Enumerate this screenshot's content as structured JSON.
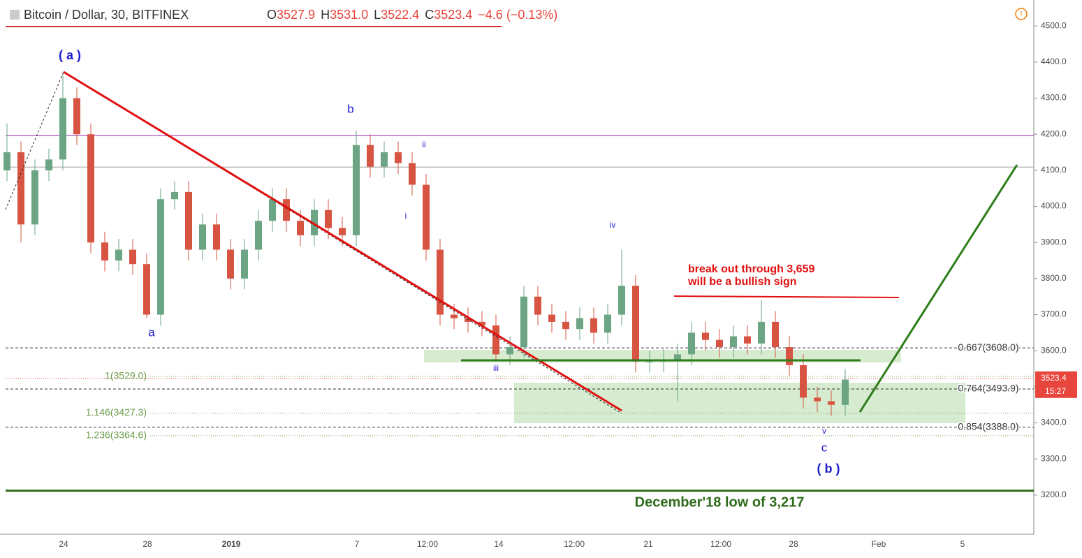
{
  "chart_data": {
    "type": "candlestick",
    "header": {
      "symbol": "Bitcoin / Dollar, 30, BITFINEX",
      "open_key": "O",
      "open": "3527.9",
      "high_key": "H",
      "high": "3531.0",
      "low_key": "L",
      "low": "3522.4",
      "close_key": "C",
      "close": "3523.4",
      "change": "−4.6 (−0.13%)"
    },
    "ylim": [
      3043,
      4572
    ],
    "yticks": [
      {
        "value": 3200,
        "label": "3200.0"
      },
      {
        "value": 3300,
        "label": "3300.0"
      },
      {
        "value": 3400,
        "label": "3400.0"
      },
      {
        "value": 3500,
        "label": "3500.0"
      },
      {
        "value": 3600,
        "label": "3600.0"
      },
      {
        "value": 3700,
        "label": "3700.0"
      },
      {
        "value": 3800,
        "label": "3800.0"
      },
      {
        "value": 3900,
        "label": "3900.0"
      },
      {
        "value": 4000,
        "label": "4000.0"
      },
      {
        "value": 4100,
        "label": "4100.0"
      },
      {
        "value": 4200,
        "label": "4200.0"
      },
      {
        "value": 4300,
        "label": "4300.0"
      },
      {
        "value": 4400,
        "label": "4400.0"
      },
      {
        "value": 4500,
        "label": "4500.0"
      }
    ],
    "xtick_labels": [
      "24",
      "28",
      "2019",
      "7",
      "12:00",
      "14",
      "12:00",
      "21",
      "12:00",
      "28",
      "Feb",
      "5"
    ],
    "up_color": "#6ba583",
    "down_color": "#d75442",
    "open": [
      4100,
      4150,
      3950,
      4100,
      4130,
      4300,
      4200,
      3900,
      3850,
      3880,
      3840,
      3700,
      4020,
      4040,
      3880,
      3950,
      3880,
      3800,
      3880,
      3960,
      4020,
      3960,
      3920,
      3990,
      3940,
      3920,
      4170,
      4110,
      4150,
      4120,
      4060,
      3880,
      3700,
      3690,
      3680,
      3670,
      3590,
      3610,
      3750,
      3700,
      3680,
      3660,
      3690,
      3650,
      3700,
      3780,
      3570,
      3570,
      3575,
      3590,
      3650,
      3630,
      3610,
      3640,
      3620,
      3680,
      3610,
      3560,
      3470,
      3460,
      3450
    ],
    "high": [
      4230,
      4180,
      4130,
      4160,
      4370,
      4330,
      4230,
      3930,
      3910,
      3910,
      3870,
      4050,
      4070,
      4070,
      3980,
      3980,
      3910,
      3910,
      3990,
      4050,
      4050,
      3990,
      4020,
      4020,
      3970,
      4210,
      4200,
      4180,
      4180,
      4150,
      4090,
      3910,
      3730,
      3720,
      3710,
      3700,
      3640,
      3780,
      3780,
      3730,
      3710,
      3720,
      3720,
      3730,
      3880,
      3810,
      3600,
      3605,
      3620,
      3680,
      3680,
      3660,
      3670,
      3670,
      3740,
      3710,
      3640,
      3590,
      3500,
      3490,
      3550
    ],
    "low": [
      4070,
      3900,
      3920,
      4070,
      4100,
      4170,
      3870,
      3820,
      3820,
      3810,
      3690,
      3670,
      3990,
      3850,
      3850,
      3850,
      3770,
      3770,
      3850,
      3930,
      3930,
      3890,
      3890,
      3910,
      3890,
      3890,
      4080,
      4080,
      4090,
      4030,
      3850,
      3670,
      3660,
      3650,
      3640,
      3570,
      3560,
      3580,
      3670,
      3650,
      3630,
      3630,
      3620,
      3620,
      3670,
      3540,
      3540,
      3540,
      3460,
      3560,
      3600,
      3580,
      3580,
      3590,
      3590,
      3580,
      3530,
      3440,
      3430,
      3420,
      3420
    ],
    "close": [
      4150,
      3950,
      4100,
      4130,
      4300,
      4200,
      3900,
      3850,
      3880,
      3840,
      3700,
      4020,
      4040,
      3880,
      3950,
      3880,
      3800,
      3880,
      3960,
      4020,
      3960,
      3920,
      3990,
      3940,
      3920,
      4170,
      4110,
      4150,
      4120,
      4060,
      3880,
      3700,
      3690,
      3680,
      3670,
      3590,
      3610,
      3750,
      3700,
      3680,
      3660,
      3690,
      3650,
      3700,
      3780,
      3570,
      3570,
      3575,
      3590,
      3650,
      3630,
      3610,
      3640,
      3620,
      3680,
      3610,
      3560,
      3470,
      3460,
      3450,
      3520
    ],
    "levels": [
      {
        "value": 4196,
        "color": "#9c27b0"
      },
      {
        "value": 4109,
        "color": "#9e9e9e"
      },
      {
        "value": 3212,
        "color": "#2e6b1a"
      }
    ],
    "fib_right": [
      {
        "value": 3608,
        "label": "0.667(3608.0)"
      },
      {
        "value": 3493.9,
        "label": "0.764(3493.9)"
      },
      {
        "value": 3388,
        "label": "0.854(3388.0)"
      }
    ],
    "fib_left": [
      {
        "value": 3529,
        "label": "1(3529.0)"
      },
      {
        "value": 3427.3,
        "label": "1.146(3427.3)"
      },
      {
        "value": 3364.6,
        "label": "1.236(3364.6)"
      }
    ],
    "last_price": 3523.4,
    "countdown": "15:27",
    "wave_labels": [
      "( a )",
      "a",
      "b",
      "ii",
      "i",
      "iii",
      "iv",
      "v",
      "c",
      "( b )"
    ],
    "annotations": [
      "break out through 3,659",
      "will be a bullish sign",
      "December'18 low of 3,217"
    ]
  }
}
